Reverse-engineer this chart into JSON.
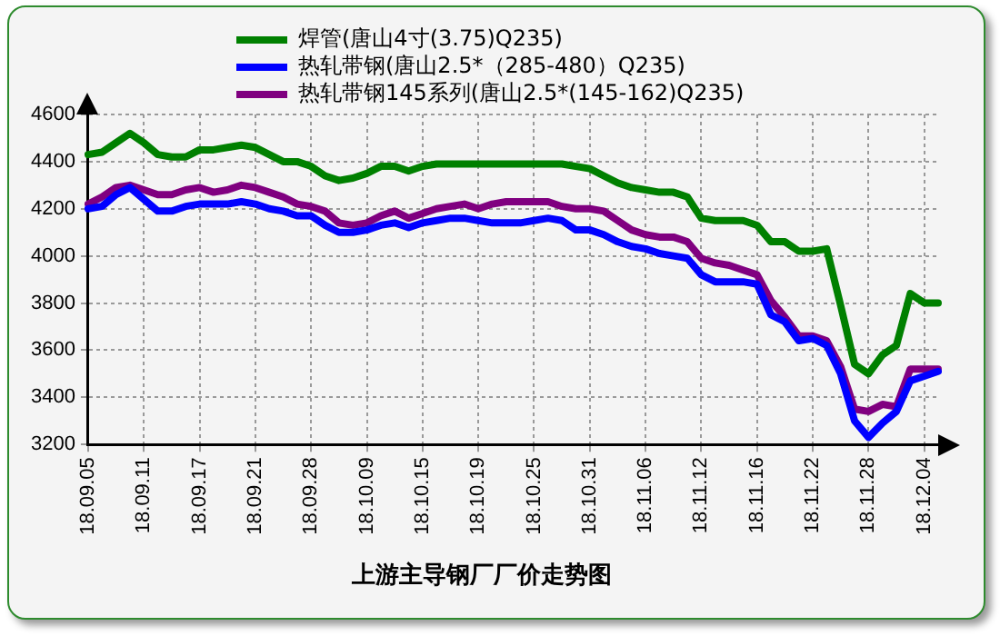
{
  "chart_data": {
    "type": "line",
    "title": "上游主导钢厂厂价走势图",
    "categories": [
      "18.09.05",
      null,
      null,
      null,
      "18.09.11",
      null,
      null,
      null,
      "18.09.17",
      null,
      null,
      null,
      "18.09.21",
      null,
      null,
      null,
      "18.09.28",
      null,
      null,
      null,
      "18.10.09",
      null,
      null,
      null,
      "18.10.15",
      null,
      null,
      null,
      "18.10.19",
      null,
      null,
      null,
      "18.10.25",
      null,
      null,
      null,
      "18.10.31",
      null,
      null,
      null,
      "18.11.06",
      null,
      null,
      null,
      "18.11.12",
      null,
      null,
      null,
      "18.11.16",
      null,
      null,
      null,
      "18.11.22",
      null,
      null,
      null,
      "18.11.28",
      null,
      null,
      null,
      "18.12.04",
      null
    ],
    "series": [
      {
        "name": "焊管(唐山4寸(3.75)Q235)",
        "color": "#008000",
        "values": [
          4430,
          4440,
          4480,
          4520,
          4480,
          4430,
          4420,
          4420,
          4450,
          4450,
          4460,
          4470,
          4460,
          4430,
          4400,
          4400,
          4380,
          4340,
          4320,
          4330,
          4350,
          4380,
          4380,
          4360,
          4380,
          4390,
          4390,
          4390,
          4390,
          4390,
          4390,
          4390,
          4390,
          4390,
          4390,
          4380,
          4370,
          4340,
          4310,
          4290,
          4280,
          4270,
          4270,
          4250,
          4160,
          4150,
          4150,
          4150,
          4130,
          4060,
          4060,
          4020,
          4020,
          4030,
          3790,
          3540,
          3500,
          3580,
          3620,
          3840,
          3800,
          3800
        ]
      },
      {
        "name": "热轧带钢(唐山2.5*（285-480）Q235)",
        "color": "#0000ff",
        "values": [
          4200,
          4210,
          4260,
          4290,
          4240,
          4190,
          4190,
          4210,
          4220,
          4220,
          4220,
          4230,
          4220,
          4200,
          4190,
          4170,
          4170,
          4130,
          4100,
          4100,
          4110,
          4130,
          4140,
          4120,
          4140,
          4150,
          4160,
          4160,
          4150,
          4140,
          4140,
          4140,
          4150,
          4160,
          4150,
          4110,
          4110,
          4090,
          4060,
          4040,
          4030,
          4010,
          4000,
          3990,
          3920,
          3890,
          3890,
          3890,
          3880,
          3750,
          3720,
          3640,
          3650,
          3620,
          3500,
          3300,
          3230,
          3290,
          3340,
          3470,
          3490,
          3510
        ]
      },
      {
        "name": "热轧带钢145系列(唐山2.5*(145-162)Q235)",
        "color": "#800080",
        "values": [
          4220,
          4250,
          4290,
          4300,
          4280,
          4260,
          4260,
          4280,
          4290,
          4270,
          4280,
          4300,
          4290,
          4270,
          4250,
          4220,
          4210,
          4190,
          4140,
          4130,
          4140,
          4170,
          4190,
          4160,
          4180,
          4200,
          4210,
          4220,
          4200,
          4220,
          4230,
          4230,
          4230,
          4230,
          4210,
          4200,
          4200,
          4190,
          4150,
          4110,
          4090,
          4080,
          4080,
          4060,
          3990,
          3970,
          3960,
          3940,
          3920,
          3810,
          3740,
          3660,
          3660,
          3640,
          3530,
          3350,
          3340,
          3370,
          3360,
          3520,
          3520,
          3520
        ]
      }
    ],
    "ylim": [
      3200,
      4600
    ],
    "yticks": [
      3200,
      3400,
      3600,
      3800,
      4000,
      4200,
      4400,
      4600
    ],
    "grid": true,
    "legend": "top",
    "marker": "none",
    "line_style": "solid"
  }
}
